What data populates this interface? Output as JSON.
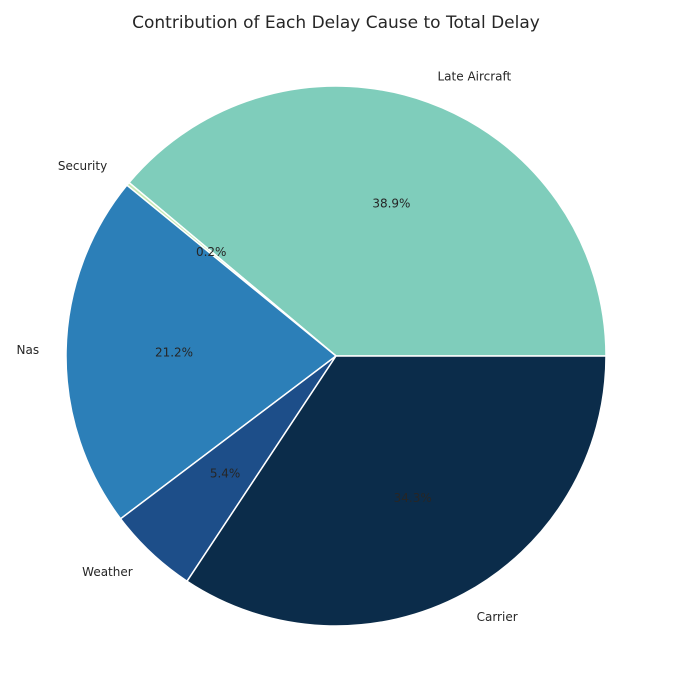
{
  "chart_data": {
    "type": "pie",
    "title": "Contribution of Each Delay Cause to Total Delay",
    "categories": [
      "Late Aircraft",
      "Security",
      "Nas",
      "Weather",
      "Carrier"
    ],
    "values": [
      38.9,
      0.2,
      21.2,
      5.4,
      34.3
    ],
    "value_labels": [
      "38.9%",
      "0.2%",
      "21.2%",
      "5.4%",
      "34.3%"
    ],
    "colors": [
      "#7fcdbb",
      "#c7e9b4",
      "#2c7fb8",
      "#1d4e89",
      "#0b2c4a"
    ],
    "start_angle_deg": 0,
    "direction": "counterclockwise"
  }
}
